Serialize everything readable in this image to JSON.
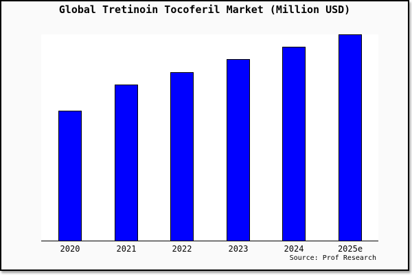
{
  "page": {
    "title": "Global Tretinoin Tocoferil Market (Million USD)",
    "source_credit": "Source: Prof Research"
  },
  "colors": {
    "bar_fill": "#0000ff",
    "bar_border": "#000000",
    "card_background": "#fafafa",
    "plot_background": "#ffffff",
    "frame_border": "#000000",
    "text": "#000000"
  },
  "chart_data": {
    "type": "bar",
    "title": "Global Tretinoin Tocoferil Market (Million USD)",
    "categories": [
      "2020",
      "2021",
      "2022",
      "2023",
      "2024",
      "2025e"
    ],
    "values": [
      62.8,
      75.4,
      81.4,
      87.7,
      93.7,
      99.7
    ],
    "xlabel": "",
    "ylabel": "",
    "ylim": [
      0,
      100
    ],
    "grid": false,
    "legend": false,
    "y_axis_visible": false,
    "source": "Source: Prof Research"
  }
}
